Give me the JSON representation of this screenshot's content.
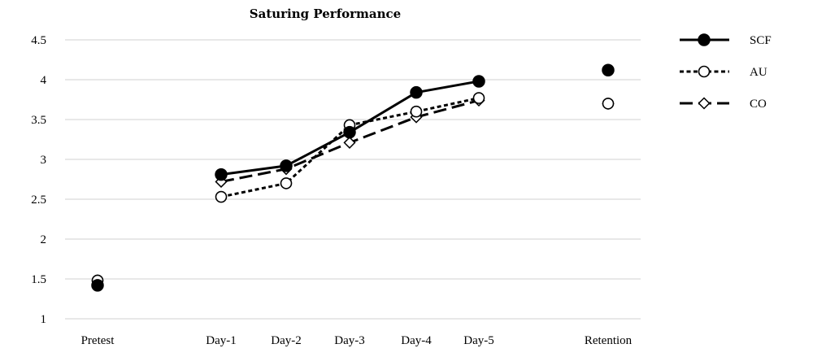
{
  "chart_data": {
    "type": "line",
    "title": "Saturing Performance",
    "xlabel": "",
    "ylabel": "",
    "categories": [
      "Pretest",
      "Day-1",
      "Day-2",
      "Day-3",
      "Day-4",
      "Day-5",
      "Retention"
    ],
    "connected_categories": [
      "Day-1",
      "Day-2",
      "Day-3",
      "Day-4",
      "Day-5"
    ],
    "ylim": [
      1,
      4.5
    ],
    "yticks": [
      "1",
      "1.5",
      "2",
      "2.5",
      "3",
      "3.5",
      "4",
      "4.5"
    ],
    "grid": true,
    "legend_position": "right",
    "series": [
      {
        "name": "SCF",
        "marker": "filled-circle",
        "line": "solid",
        "values": [
          1.42,
          2.81,
          2.92,
          3.34,
          3.84,
          3.98,
          4.12
        ]
      },
      {
        "name": "AU",
        "marker": "open-circle",
        "line": "dashed",
        "values": [
          1.48,
          2.53,
          2.7,
          3.43,
          3.6,
          3.77,
          3.7
        ]
      },
      {
        "name": "CO",
        "marker": "open-diamond",
        "line": "long-dash",
        "values": [
          1.48,
          2.72,
          2.88,
          3.21,
          3.53,
          3.74,
          3.7
        ]
      }
    ]
  }
}
